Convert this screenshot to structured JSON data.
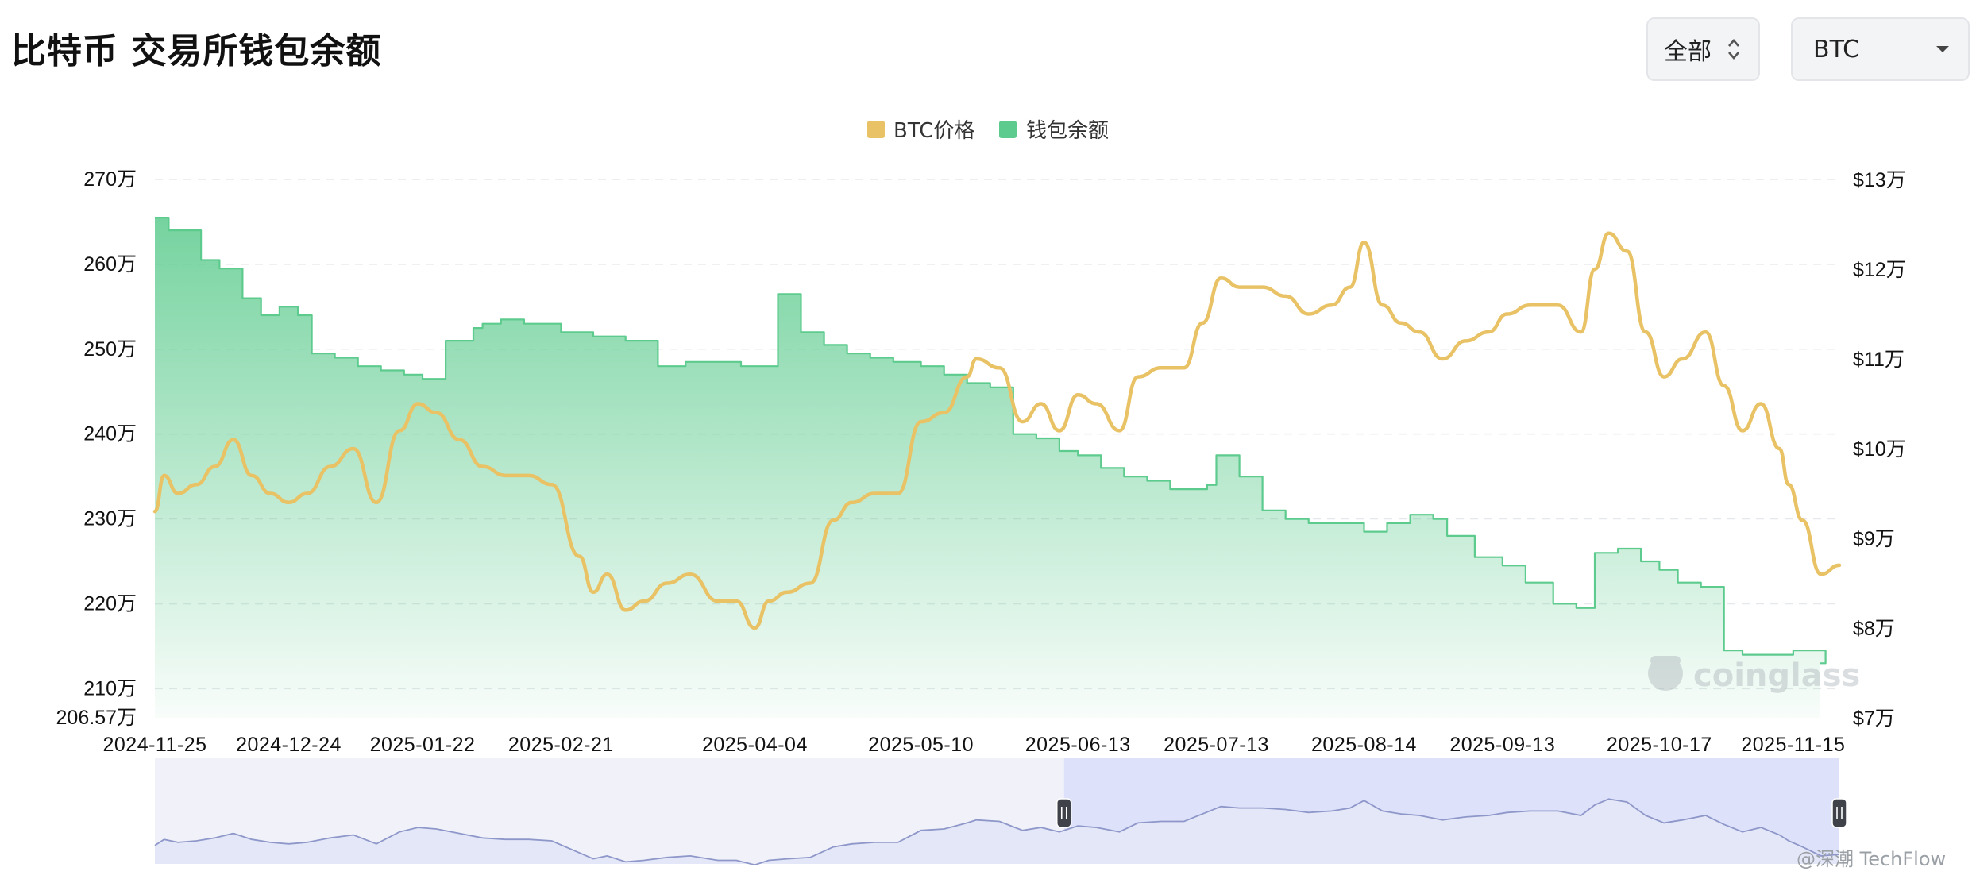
{
  "header": {
    "title": "比特币 交易所钱包余额",
    "range_select": "全部",
    "asset_select": "BTC"
  },
  "colors": {
    "price": "#e8c265",
    "balance": "#5dcb8e",
    "navigator_fill": "#e4e7f7",
    "navigator_selected": "#dde1fa"
  },
  "watermark": "coinglass",
  "credit": "@深潮 TechFlow",
  "chart_data": {
    "type": "line",
    "legend": {
      "position": "top-center",
      "items": [
        "BTC价格",
        "钱包余额"
      ]
    },
    "grid": true,
    "x_tick_labels": [
      "2024-11-25",
      "2024-12-24",
      "2025-01-22",
      "2025-02-21",
      "2025-04-04",
      "2025-05-10",
      "2025-06-13",
      "2025-07-13",
      "2025-08-14",
      "2025-09-13",
      "2025-10-17",
      "2025-11-15"
    ],
    "y_left": {
      "ticks": [
        "270万",
        "260万",
        "250万",
        "240万",
        "230万",
        "220万",
        "210万",
        "206.57万"
      ],
      "range": [
        206.57,
        270
      ],
      "unit": "万 BTC"
    },
    "y_right": {
      "ticks": [
        "$13万",
        "$12万",
        "$11万",
        "$10万",
        "$9万",
        "$8万",
        "$7万"
      ],
      "range": [
        7,
        13
      ],
      "unit": "$万"
    },
    "series": [
      {
        "name": "钱包余额",
        "type": "area",
        "axis": "left",
        "x": [
          "2024-11-25",
          "2024-11-28",
          "2024-12-01",
          "2024-12-05",
          "2024-12-09",
          "2024-12-14",
          "2024-12-18",
          "2024-12-22",
          "2024-12-26",
          "2024-12-29",
          "2025-01-03",
          "2025-01-08",
          "2025-01-13",
          "2025-01-18",
          "2025-01-22",
          "2025-01-27",
          "2025-02-02",
          "2025-02-04",
          "2025-02-08",
          "2025-02-13",
          "2025-02-18",
          "2025-02-21",
          "2025-02-28",
          "2025-03-07",
          "2025-03-14",
          "2025-03-20",
          "2025-03-26",
          "2025-04-01",
          "2025-04-04",
          "2025-04-09",
          "2025-04-14",
          "2025-04-19",
          "2025-04-24",
          "2025-04-29",
          "2025-05-04",
          "2025-05-10",
          "2025-05-15",
          "2025-05-20",
          "2025-05-25",
          "2025-05-30",
          "2025-06-04",
          "2025-06-09",
          "2025-06-13",
          "2025-06-18",
          "2025-06-23",
          "2025-06-28",
          "2025-07-03",
          "2025-07-08",
          "2025-07-11",
          "2025-07-13",
          "2025-07-18",
          "2025-07-23",
          "2025-07-28",
          "2025-08-02",
          "2025-08-07",
          "2025-08-14",
          "2025-08-19",
          "2025-08-24",
          "2025-08-29",
          "2025-09-01",
          "2025-09-07",
          "2025-09-13",
          "2025-09-18",
          "2025-09-24",
          "2025-09-29",
          "2025-10-03",
          "2025-10-08",
          "2025-10-13",
          "2025-10-17",
          "2025-10-21",
          "2025-10-26",
          "2025-10-31",
          "2025-11-04",
          "2025-11-09",
          "2025-11-15",
          "2025-11-17",
          "2025-11-19",
          "2025-11-22"
        ],
        "values": [
          265.5,
          264.0,
          264.0,
          260.5,
          259.5,
          256.0,
          254.0,
          255.0,
          254.0,
          249.5,
          249.0,
          248.0,
          247.5,
          247.0,
          246.5,
          251.0,
          252.5,
          253.0,
          253.5,
          253.0,
          253.0,
          252.0,
          251.5,
          251.0,
          248.0,
          248.5,
          248.5,
          248.0,
          248.0,
          256.5,
          252.0,
          250.5,
          249.5,
          249.0,
          248.5,
          248.0,
          247.0,
          246.0,
          245.5,
          240.0,
          239.5,
          238.0,
          237.5,
          236.0,
          235.0,
          234.5,
          233.5,
          233.5,
          234.0,
          237.5,
          235.0,
          231.0,
          230.0,
          229.5,
          229.5,
          228.5,
          229.5,
          230.5,
          230.0,
          228.0,
          225.5,
          224.5,
          222.5,
          220.0,
          219.5,
          226.0,
          226.5,
          225.0,
          224.0,
          222.5,
          222.0,
          214.5,
          214.0,
          214.0,
          214.5,
          214.5,
          214.5,
          213.0
        ]
      },
      {
        "name": "BTC价格",
        "type": "line",
        "axis": "right",
        "x": [
          "2024-11-25",
          "2024-11-27",
          "2024-11-30",
          "2024-12-04",
          "2024-12-08",
          "2024-12-12",
          "2024-12-16",
          "2024-12-20",
          "2024-12-24",
          "2024-12-28",
          "2025-01-02",
          "2025-01-07",
          "2025-01-12",
          "2025-01-17",
          "2025-01-21",
          "2025-01-25",
          "2025-01-30",
          "2025-02-04",
          "2025-02-09",
          "2025-02-14",
          "2025-02-19",
          "2025-02-25",
          "2025-02-28",
          "2025-03-03",
          "2025-03-07",
          "2025-03-11",
          "2025-03-16",
          "2025-03-21",
          "2025-03-27",
          "2025-03-31",
          "2025-04-04",
          "2025-04-07",
          "2025-04-11",
          "2025-04-16",
          "2025-04-21",
          "2025-04-25",
          "2025-04-30",
          "2025-05-05",
          "2025-05-10",
          "2025-05-15",
          "2025-05-20",
          "2025-05-22",
          "2025-05-27",
          "2025-06-01",
          "2025-06-05",
          "2025-06-09",
          "2025-06-13",
          "2025-06-17",
          "2025-06-22",
          "2025-06-26",
          "2025-07-01",
          "2025-07-06",
          "2025-07-10",
          "2025-07-14",
          "2025-07-18",
          "2025-07-23",
          "2025-07-28",
          "2025-08-02",
          "2025-08-07",
          "2025-08-11",
          "2025-08-14",
          "2025-08-18",
          "2025-08-22",
          "2025-08-26",
          "2025-08-31",
          "2025-09-05",
          "2025-09-10",
          "2025-09-14",
          "2025-09-19",
          "2025-09-25",
          "2025-09-30",
          "2025-10-03",
          "2025-10-06",
          "2025-10-10",
          "2025-10-14",
          "2025-10-18",
          "2025-10-22",
          "2025-10-27",
          "2025-10-31",
          "2025-11-04",
          "2025-11-08",
          "2025-11-12",
          "2025-11-14",
          "2025-11-17",
          "2025-11-21",
          "2025-11-25"
        ],
        "values": [
          9.3,
          9.7,
          9.5,
          9.6,
          9.8,
          10.1,
          9.7,
          9.5,
          9.4,
          9.5,
          9.8,
          10.0,
          9.4,
          10.2,
          10.5,
          10.4,
          10.1,
          9.8,
          9.7,
          9.7,
          9.6,
          8.8,
          8.4,
          8.6,
          8.2,
          8.3,
          8.5,
          8.6,
          8.3,
          8.3,
          8.0,
          8.3,
          8.4,
          8.5,
          9.2,
          9.4,
          9.5,
          9.5,
          10.3,
          10.4,
          10.8,
          11.0,
          10.9,
          10.3,
          10.5,
          10.2,
          10.6,
          10.5,
          10.2,
          10.8,
          10.9,
          10.9,
          11.4,
          11.9,
          11.8,
          11.8,
          11.7,
          11.5,
          11.6,
          11.8,
          12.3,
          11.6,
          11.4,
          11.3,
          11.0,
          11.2,
          11.3,
          11.5,
          11.6,
          11.6,
          11.3,
          12.0,
          12.4,
          12.2,
          11.3,
          10.8,
          11.0,
          11.3,
          10.7,
          10.2,
          10.5,
          10.0,
          9.6,
          9.2,
          8.6,
          8.7
        ]
      }
    ],
    "navigator": {
      "selected_range": [
        "2025-06-10",
        "2025-11-25"
      ]
    }
  }
}
